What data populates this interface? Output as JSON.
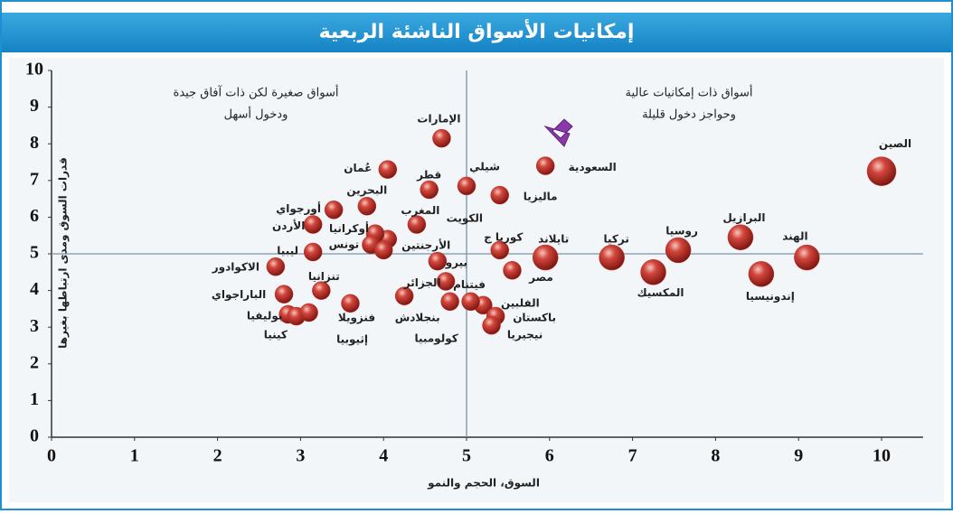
{
  "chart_data": {
    "type": "scatter",
    "title": "إمكانيات الأسواق الناشئة الربعية",
    "xlabel": "السوق، الحجم والنمو",
    "ylabel": "قدرات السوق ومدى ارتباطها بغيرها",
    "annotations": [
      [
        "أسواق صغيرة لكن ذات آفاق جيدة",
        "ودخول أسهل"
      ],
      [
        "أسواق ذات إمكانيات عالية",
        "وحواجز دخول قليلة"
      ]
    ],
    "xlim": [
      0,
      10.5
    ],
    "ylim": [
      0,
      10
    ],
    "xticks": [
      0,
      1,
      2,
      3,
      4,
      5,
      6,
      7,
      8,
      9,
      10
    ],
    "yticks": [
      0,
      1,
      2,
      3,
      4,
      5,
      6,
      7,
      8,
      9,
      10
    ],
    "xref": 5,
    "yref": 5,
    "color": "#c0302c",
    "labels": [
      "الصين",
      "الهند",
      "إندونيسيا",
      "البرازيل",
      "روسيا",
      "المكسيك",
      "تركيا",
      "تايلاند",
      "السعودية",
      "ماليزيا",
      "شيلي",
      "الإمارات",
      "قطر",
      "عُمان",
      "البحرين",
      "أورجواي",
      "الأردن",
      "المغرب",
      "الكويت",
      "أوكرانيا",
      "تونس",
      "الأرجنتين",
      "ليبيا",
      "الاكوادور",
      "بيرو",
      "كوريا ج",
      "مصر",
      "فيتنام",
      "الجزائر",
      "تنزانيا",
      "الباراجواي",
      "فنزويلا",
      "بوليفيا",
      "كينيا",
      "إثيوبيا",
      "بنجلادش",
      "الفلبين",
      "باكستان",
      "كولومبيا",
      "نيجيريا"
    ],
    "x": [
      10.0,
      9.1,
      8.55,
      8.3,
      7.55,
      7.25,
      6.75,
      5.95,
      5.95,
      5.4,
      5.0,
      4.7,
      4.55,
      4.05,
      3.8,
      3.4,
      3.15,
      4.4,
      4.05,
      3.9,
      3.85,
      4.0,
      3.15,
      2.7,
      4.65,
      5.4,
      5.55,
      4.75,
      4.25,
      3.25,
      2.8,
      3.6,
      2.85,
      2.95,
      3.1,
      4.8,
      5.2,
      5.35,
      5.05,
      5.3
    ],
    "y": [
      7.25,
      4.9,
      4.45,
      5.45,
      5.1,
      4.5,
      4.9,
      4.9,
      7.4,
      6.6,
      6.85,
      8.15,
      6.75,
      7.3,
      6.3,
      6.2,
      5.8,
      5.8,
      5.4,
      5.55,
      5.25,
      5.1,
      5.05,
      4.65,
      4.8,
      5.1,
      4.55,
      4.25,
      3.85,
      4.0,
      3.9,
      3.65,
      3.35,
      3.3,
      3.4,
      3.7,
      3.6,
      3.3,
      3.7,
      3.05
    ]
  }
}
